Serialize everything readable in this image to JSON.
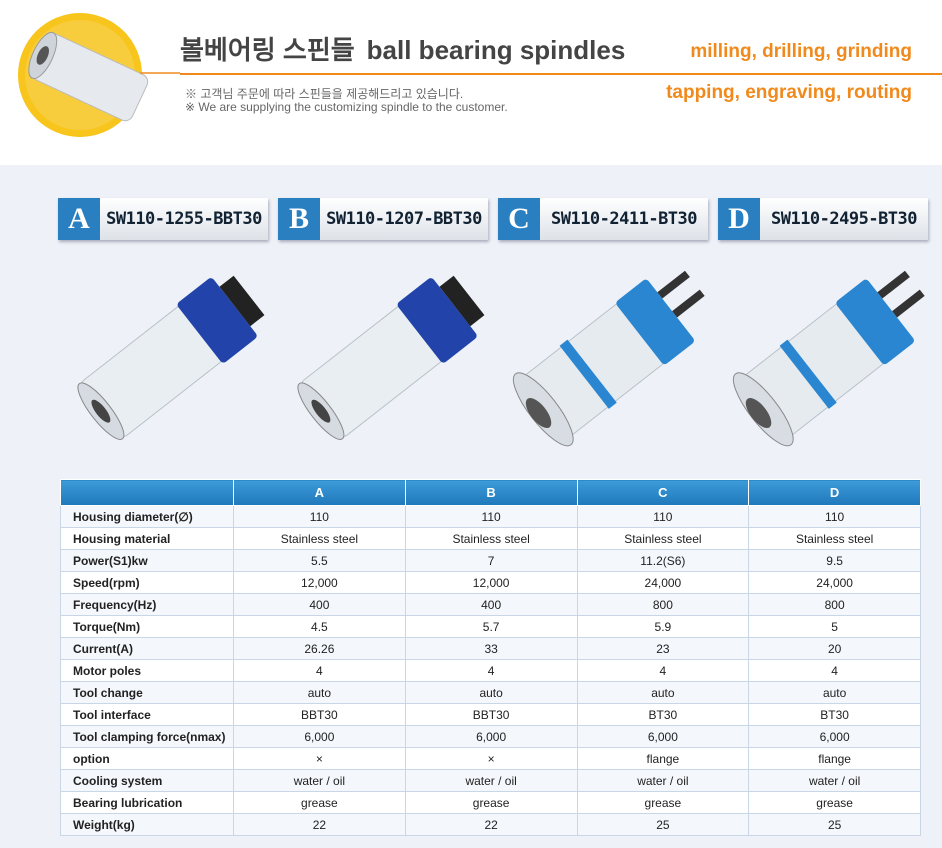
{
  "header": {
    "title_ko": "볼베어링 스핀들",
    "title_en": "ball bearing spindles",
    "tags": [
      "milling, drilling, grinding",
      "tapping, engraving, routing"
    ],
    "notes": [
      "※ 고객님 주문에 따라 스핀들을 제공해드리고 있습니다.",
      "※ We are supplying the customizing spindle to the customer."
    ]
  },
  "models": [
    {
      "letter": "A",
      "code": "SW110-1255-BBT30"
    },
    {
      "letter": "B",
      "code": "SW110-1207-BBT30"
    },
    {
      "letter": "C",
      "code": "SW110-2411-BT30"
    },
    {
      "letter": "D",
      "code": "SW110-2495-BT30"
    }
  ],
  "table": {
    "columns": [
      "A",
      "B",
      "C",
      "D"
    ],
    "rows": [
      {
        "label": "Housing diameter(∅)",
        "values": [
          "110",
          "110",
          "110",
          "110"
        ]
      },
      {
        "label": "Housing material",
        "values": [
          "Stainless steel",
          "Stainless steel",
          "Stainless steel",
          "Stainless steel"
        ]
      },
      {
        "label": "Power(S1)kw",
        "values": [
          "5.5",
          "7",
          "11.2(S6)",
          "9.5"
        ]
      },
      {
        "label": "Speed(rpm)",
        "values": [
          "12,000",
          "12,000",
          "24,000",
          "24,000"
        ]
      },
      {
        "label": "Frequency(Hz)",
        "values": [
          "400",
          "400",
          "800",
          "800"
        ]
      },
      {
        "label": "Torque(Nm)",
        "values": [
          "4.5",
          "5.7",
          "5.9",
          "5"
        ]
      },
      {
        "label": "Current(A)",
        "values": [
          "26.26",
          "33",
          "23",
          "20"
        ]
      },
      {
        "label": "Motor poles",
        "values": [
          "4",
          "4",
          "4",
          "4"
        ]
      },
      {
        "label": "Tool change",
        "values": [
          "auto",
          "auto",
          "auto",
          "auto"
        ]
      },
      {
        "label": "Tool interface",
        "values": [
          "BBT30",
          "BBT30",
          "BT30",
          "BT30"
        ]
      },
      {
        "label": "Tool clamping force(nmax)",
        "values": [
          "6,000",
          "6,000",
          "6,000",
          "6,000"
        ]
      },
      {
        "label": "option",
        "values": [
          "×",
          "×",
          "flange",
          "flange"
        ]
      },
      {
        "label": "Cooling system",
        "values": [
          "water / oil",
          "water / oil",
          "water / oil",
          "water / oil"
        ]
      },
      {
        "label": "Bearing lubrication",
        "values": [
          "grease",
          "grease",
          "grease",
          "grease"
        ]
      },
      {
        "label": "Weight(kg)",
        "values": [
          "22",
          "22",
          "25",
          "25"
        ]
      }
    ]
  }
}
